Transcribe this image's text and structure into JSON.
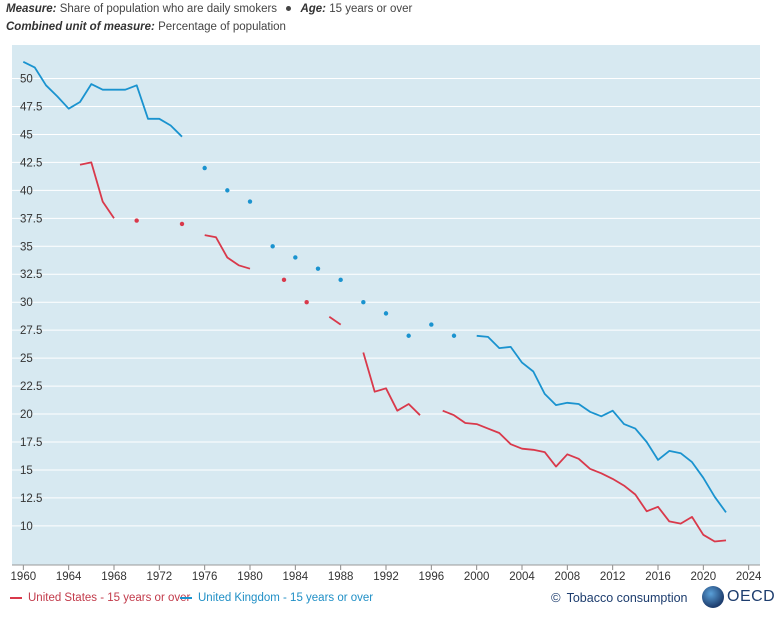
{
  "header": {
    "measure_label": "Measure:",
    "measure_value": "Share of population who are daily smokers",
    "age_label": "Age:",
    "age_value": "15 years or over",
    "unit_label": "Combined unit of measure:",
    "unit_value": "Percentage of population"
  },
  "footer": {
    "source_link": "Tobacco consumption",
    "brand": "OECD"
  },
  "colors": {
    "us": "#d9394b",
    "uk": "#1a93cf",
    "plot_bg": "#d7e9f1",
    "grid": "#ffffff"
  },
  "chart_data": {
    "type": "line",
    "xlabel": "",
    "ylabel": "",
    "xlim": [
      1959,
      2025
    ],
    "ylim": [
      6.5,
      53
    ],
    "x_ticks": [
      "1960",
      "1964",
      "1968",
      "1972",
      "1976",
      "1980",
      "1984",
      "1988",
      "1992",
      "1996",
      "2000",
      "2004",
      "2008",
      "2012",
      "2016",
      "2020",
      "2024"
    ],
    "y_ticks": [
      "10",
      "12.5",
      "15",
      "17.5",
      "20",
      "22.5",
      "25",
      "27.5",
      "30",
      "32.5",
      "35",
      "37.5",
      "40",
      "42.5",
      "45",
      "47.5",
      "50"
    ],
    "legend_position": "bottom-left",
    "series": [
      {
        "name": "United States - 15 years or over",
        "color": "#d9394b",
        "points": [
          [
            1965,
            42.3
          ],
          [
            1966,
            42.5
          ],
          [
            1967,
            39
          ],
          [
            1968,
            37.5
          ],
          [
            1970,
            37.3
          ],
          [
            1974,
            37
          ],
          [
            1976,
            36
          ],
          [
            1977,
            35.8
          ],
          [
            1978,
            34
          ],
          [
            1979,
            33.3
          ],
          [
            1980,
            33
          ],
          [
            1983,
            32
          ],
          [
            1985,
            30
          ],
          [
            1987,
            28.7
          ],
          [
            1988,
            28
          ],
          [
            1990,
            25.5
          ],
          [
            1991,
            22
          ],
          [
            1992,
            22.3
          ],
          [
            1993,
            20.3
          ],
          [
            1994,
            20.9
          ],
          [
            1995,
            19.9
          ],
          [
            1997,
            20.3
          ],
          [
            1998,
            19.9
          ],
          [
            1999,
            19.2
          ],
          [
            2000,
            19.1
          ],
          [
            2001,
            18.7
          ],
          [
            2002,
            18.3
          ],
          [
            2003,
            17.3
          ],
          [
            2004,
            16.9
          ],
          [
            2005,
            16.8
          ],
          [
            2006,
            16.6
          ],
          [
            2007,
            15.3
          ],
          [
            2008,
            16.4
          ],
          [
            2009,
            16
          ],
          [
            2010,
            15.1
          ],
          [
            2011,
            14.7
          ],
          [
            2012,
            14.2
          ],
          [
            2013,
            13.6
          ],
          [
            2014,
            12.8
          ],
          [
            2015,
            11.3
          ],
          [
            2016,
            11.7
          ],
          [
            2017,
            10.4
          ],
          [
            2018,
            10.2
          ],
          [
            2019,
            10.8
          ],
          [
            2020,
            9.2
          ],
          [
            2021,
            8.6
          ],
          [
            2022,
            8.7
          ]
        ]
      },
      {
        "name": "United Kingdom - 15 years or over",
        "color": "#1a93cf",
        "points": [
          [
            1960,
            51.5
          ],
          [
            1961,
            51
          ],
          [
            1962,
            49.4
          ],
          [
            1963,
            48.4
          ],
          [
            1964,
            47.3
          ],
          [
            1965,
            47.9
          ],
          [
            1966,
            49.5
          ],
          [
            1967,
            49
          ],
          [
            1968,
            49
          ],
          [
            1969,
            49
          ],
          [
            1970,
            49.4
          ],
          [
            1971,
            46.4
          ],
          [
            1972,
            46.4
          ],
          [
            1973,
            45.8
          ],
          [
            1974,
            44.8
          ],
          [
            1976,
            42
          ],
          [
            1978,
            40
          ],
          [
            1980,
            39
          ],
          [
            1982,
            35
          ],
          [
            1984,
            34
          ],
          [
            1986,
            33
          ],
          [
            1988,
            32
          ],
          [
            1990,
            30
          ],
          [
            1992,
            29
          ],
          [
            1994,
            27
          ],
          [
            1996,
            28
          ],
          [
            1998,
            27
          ],
          [
            2000,
            27
          ],
          [
            2001,
            26.9
          ],
          [
            2002,
            25.9
          ],
          [
            2003,
            26
          ],
          [
            2004,
            24.6
          ],
          [
            2005,
            23.8
          ],
          [
            2006,
            21.8
          ],
          [
            2007,
            20.8
          ],
          [
            2008,
            21
          ],
          [
            2009,
            20.9
          ],
          [
            2010,
            20.2
          ],
          [
            2011,
            19.8
          ],
          [
            2012,
            20.3
          ],
          [
            2013,
            19.1
          ],
          [
            2014,
            18.7
          ],
          [
            2015,
            17.5
          ],
          [
            2016,
            15.9
          ],
          [
            2017,
            16.7
          ],
          [
            2018,
            16.5
          ],
          [
            2019,
            15.7
          ],
          [
            2020,
            14.3
          ],
          [
            2021,
            12.6
          ],
          [
            2022,
            11.2
          ]
        ]
      }
    ]
  }
}
